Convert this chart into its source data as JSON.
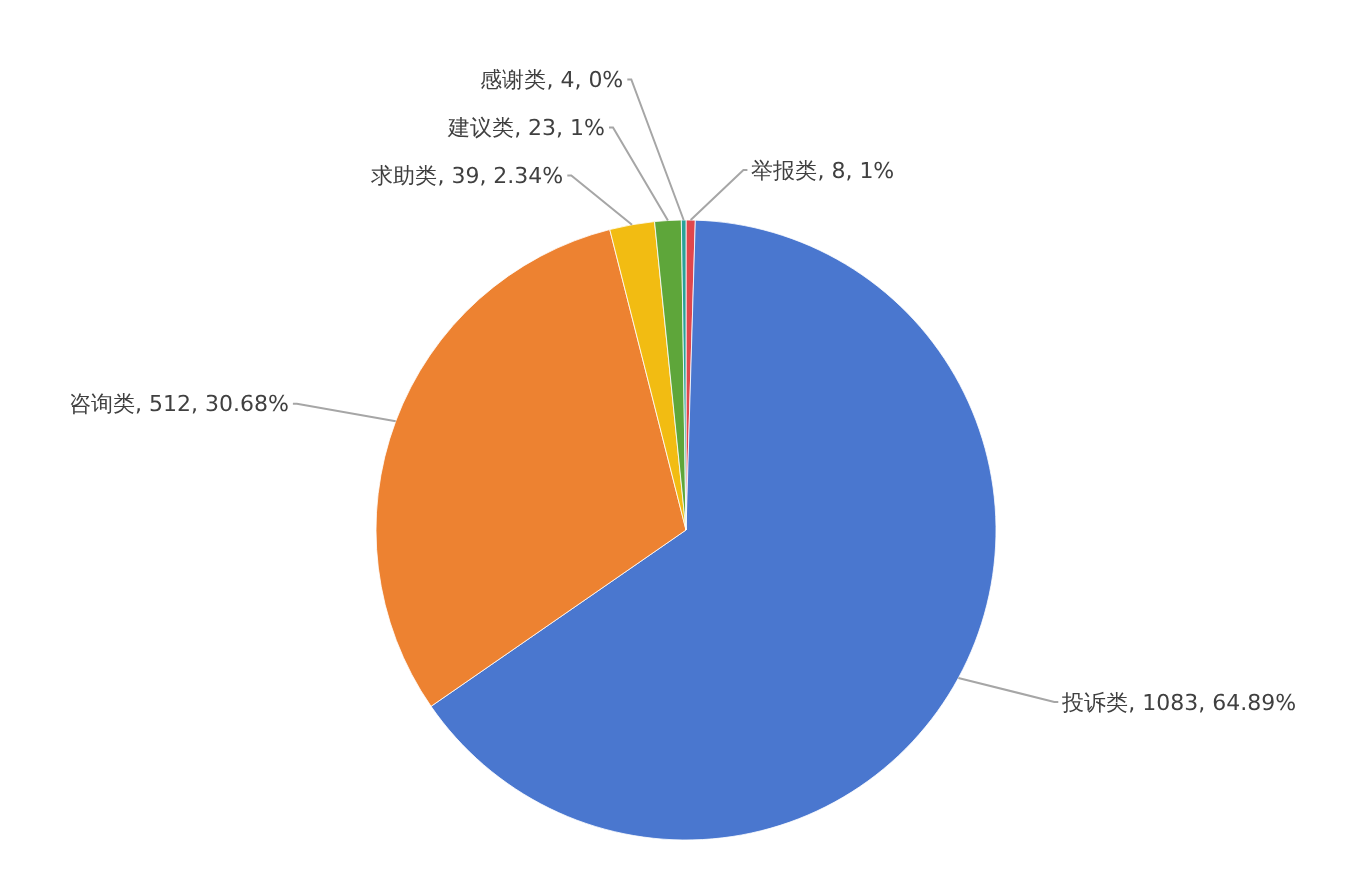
{
  "chart_data": {
    "type": "pie",
    "categories": [
      "举报类",
      "投诉类",
      "咨询类",
      "求助类",
      "建议类",
      "感谢类"
    ],
    "values": [
      8,
      1083,
      512,
      39,
      23,
      4
    ],
    "value_labels": [
      "8, 1%",
      "1083, 64.89%",
      "512, 30.68%",
      "39, 2.34%",
      "23, 1%",
      "4, 0%"
    ],
    "colors": [
      "#e0474c",
      "#4a77cf",
      "#ed8231",
      "#f2bc12",
      "#5ea63a",
      "#2aa198"
    ]
  }
}
